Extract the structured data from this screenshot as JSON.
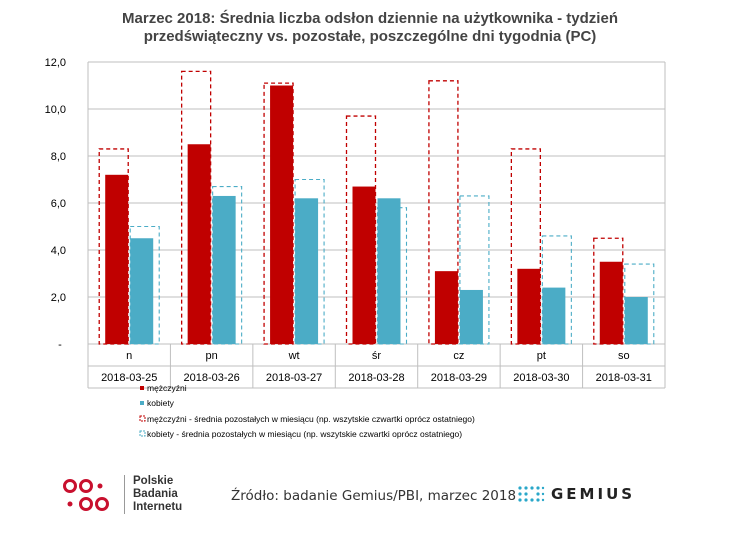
{
  "chart_data": {
    "type": "bar",
    "title": "Marzec 2018: Średnia liczba odsłon dziennie na użytkownika - tydzień przedświąteczny vs. pozostałe, poszczególne dni tygodnia (PC)",
    "title_lines": [
      "Marzec 2018: Średnia liczba odsłon dziennie na użytkownika - tydzień",
      "przedświąteczny vs. pozostałe, poszczególne dni tygodnia (PC)"
    ],
    "categories": [
      "n",
      "pn",
      "wt",
      "śr",
      "cz",
      "pt",
      "so"
    ],
    "dates": [
      "2018-03-25",
      "2018-03-26",
      "2018-03-27",
      "2018-03-28",
      "2018-03-29",
      "2018-03-30",
      "2018-03-31"
    ],
    "ylim": [
      0,
      12
    ],
    "yticks": [
      {
        "value": 0,
        "label": "-"
      },
      {
        "value": 2,
        "label": "2,0"
      },
      {
        "value": 4,
        "label": "4,0"
      },
      {
        "value": 6,
        "label": "6,0"
      },
      {
        "value": 8,
        "label": "8,0"
      },
      {
        "value": 10,
        "label": "10,0"
      },
      {
        "value": 12,
        "label": "12,0"
      }
    ],
    "grid": true,
    "legend_position": "bottom",
    "series": [
      {
        "name": "mężczyźni",
        "style": "solid",
        "color": "#c00000",
        "values": [
          7.2,
          8.5,
          11.0,
          6.7,
          3.1,
          3.2,
          3.5
        ]
      },
      {
        "name": "kobiety",
        "style": "solid",
        "color": "#4bacc6",
        "values": [
          4.5,
          6.3,
          6.2,
          6.2,
          2.3,
          2.4,
          2.0
        ]
      },
      {
        "name": "mężczyźni - średnia pozostałych w miesiącu (np. wszytskie czwartki oprócz ostatniego)",
        "style": "dashed",
        "color": "#c00000",
        "values": [
          8.3,
          11.6,
          11.1,
          9.7,
          11.2,
          8.3,
          4.5
        ]
      },
      {
        "name": "kobiety - średnia pozostałych w miesiącu (np. wszytskie czwartki oprócz ostatniego)",
        "style": "dashed",
        "color": "#4bacc6",
        "values": [
          5.0,
          6.7,
          7.0,
          5.8,
          6.3,
          4.6,
          3.4
        ]
      }
    ]
  },
  "footer": {
    "logo_lines": [
      "Polskie",
      "Badania",
      "Internetu"
    ],
    "source": "Źródło: badanie Gemius/PBI, marzec 2018",
    "gemius_label": "GEMIUS",
    "logo_color": "#c8102e",
    "gemius_color": "#2aa7c9"
  }
}
